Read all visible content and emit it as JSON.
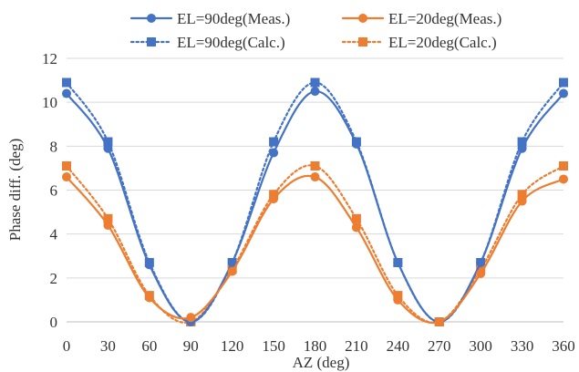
{
  "chart_data": {
    "type": "line",
    "xlabel": "AZ (deg)",
    "ylabel": "Phase diff. (deg)",
    "xlim": [
      0,
      360
    ],
    "ylim": [
      0,
      12
    ],
    "x": [
      0,
      30,
      60,
      90,
      120,
      150,
      180,
      210,
      240,
      270,
      300,
      330,
      360
    ],
    "xticks": [
      "0",
      "30",
      "60",
      "90",
      "120",
      "150",
      "180",
      "210",
      "240",
      "270",
      "300",
      "330",
      "360"
    ],
    "yticks": [
      "0",
      "2",
      "4",
      "6",
      "8",
      "10",
      "12"
    ],
    "grid": "horizontal",
    "legend": "top",
    "series": [
      {
        "name": "EL=90deg(Meas.)",
        "color": "#4472C4",
        "marker": "circle",
        "line": "solid",
        "values": [
          10.4,
          7.9,
          2.6,
          0.0,
          2.7,
          7.7,
          10.5,
          8.1,
          2.7,
          0.0,
          2.7,
          7.9,
          10.4
        ]
      },
      {
        "name": "EL=20deg(Meas.)",
        "color": "#ED7D31",
        "marker": "circle",
        "line": "solid",
        "values": [
          6.6,
          4.4,
          1.1,
          0.2,
          2.3,
          5.6,
          6.6,
          4.3,
          1.0,
          0.0,
          2.2,
          5.5,
          6.5
        ]
      },
      {
        "name": "EL=90deg(Calc.)",
        "color": "#4472C4",
        "marker": "square",
        "line": "dotted",
        "values": [
          10.9,
          8.2,
          2.7,
          0.0,
          2.7,
          8.2,
          10.9,
          8.2,
          2.7,
          0.0,
          2.7,
          8.2,
          10.9
        ]
      },
      {
        "name": "EL=20deg(Calc.)",
        "color": "#ED7D31",
        "marker": "square",
        "line": "dotted",
        "values": [
          7.1,
          4.7,
          1.2,
          0.0,
          2.4,
          5.8,
          7.1,
          4.7,
          1.2,
          0.0,
          2.4,
          5.8,
          7.1
        ]
      }
    ]
  }
}
